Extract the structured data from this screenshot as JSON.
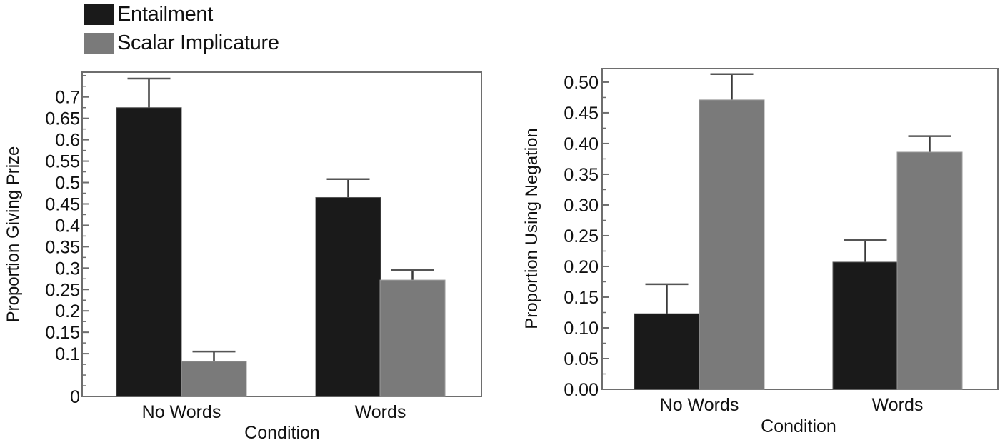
{
  "legend": {
    "items": [
      {
        "label": "Entailment",
        "color": "#1a1a1a"
      },
      {
        "label": "Scalar Implicature",
        "color": "#7a7a7a"
      }
    ]
  },
  "colors": {
    "entailment": "#1a1a1a",
    "scalar": "#7a7a7a",
    "axis": "#6e6e6e",
    "error_bar": "#3a3a3a"
  },
  "chart_data": [
    {
      "type": "bar",
      "title": "",
      "xlabel": "Condition",
      "ylabel": "Proportion Giving Prize",
      "categories": [
        "No Words",
        "Words"
      ],
      "series": [
        {
          "name": "Entailment",
          "values": [
            0.675,
            0.465
          ],
          "error_low": [
            0.608,
            0.422
          ],
          "error_high": [
            0.743,
            0.508
          ]
        },
        {
          "name": "Scalar Implicature",
          "values": [
            0.082,
            0.272
          ],
          "error_low": [
            0.058,
            0.25
          ],
          "error_high": [
            0.105,
            0.295
          ]
        }
      ],
      "yticks": [
        0,
        0.1,
        0.15,
        0.2,
        0.25,
        0.3,
        0.35,
        0.4,
        0.45,
        0.5,
        0.55,
        0.6,
        0.65,
        0.7
      ],
      "ytick_labels": [
        "0",
        "0.1",
        "0.15",
        "0.2",
        "0.25",
        "0.3",
        "0.35",
        "0.4",
        "0.45",
        "0.5",
        "0.55",
        "0.6",
        "0.65",
        "0.7"
      ],
      "ylim": [
        0,
        0.758
      ],
      "grid": false,
      "legend_position": "top-left (shared)"
    },
    {
      "type": "bar",
      "title": "",
      "xlabel": "Condition",
      "ylabel": "Proportion Using Negation",
      "categories": [
        "No Words",
        "Words"
      ],
      "series": [
        {
          "name": "Entailment",
          "values": [
            0.123,
            0.207
          ],
          "error_low": [
            0.076,
            0.171
          ],
          "error_high": [
            0.171,
            0.243
          ]
        },
        {
          "name": "Scalar Implicature",
          "values": [
            0.471,
            0.386
          ],
          "error_low": [
            0.43,
            0.36
          ],
          "error_high": [
            0.513,
            0.412
          ]
        }
      ],
      "yticks": [
        0,
        0.05,
        0.1,
        0.15,
        0.2,
        0.25,
        0.3,
        0.35,
        0.4,
        0.45,
        0.5
      ],
      "ytick_labels": [
        "0.00",
        "0.05",
        "0.10",
        "0.15",
        "0.20",
        "0.25",
        "0.30",
        "0.35",
        "0.40",
        "0.45",
        "0.50"
      ],
      "ylim": [
        0,
        0.522
      ],
      "grid": false,
      "legend_position": "top-left (shared)"
    }
  ]
}
